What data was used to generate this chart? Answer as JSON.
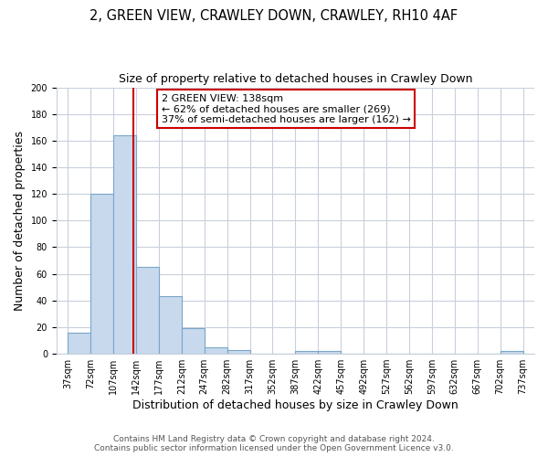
{
  "title": "2, GREEN VIEW, CRAWLEY DOWN, CRAWLEY, RH10 4AF",
  "subtitle": "Size of property relative to detached houses in Crawley Down",
  "xlabel": "Distribution of detached houses by size in Crawley Down",
  "ylabel": "Number of detached properties",
  "bar_edges": [
    37,
    72,
    107,
    142,
    177,
    212,
    247,
    282,
    317,
    352,
    387,
    422,
    457,
    492,
    527,
    562,
    597,
    632,
    667,
    702,
    737
  ],
  "bar_heights": [
    16,
    120,
    164,
    65,
    43,
    19,
    5,
    3,
    0,
    0,
    2,
    2,
    0,
    0,
    0,
    0,
    0,
    0,
    0,
    2
  ],
  "bar_color": "#c8d9ed",
  "bar_edge_color": "#7aa5c8",
  "vline_x": 138,
  "vline_color": "#cc0000",
  "ylim": [
    0,
    200
  ],
  "yticks": [
    0,
    20,
    40,
    60,
    80,
    100,
    120,
    140,
    160,
    180,
    200
  ],
  "tick_labels": [
    "37sqm",
    "72sqm",
    "107sqm",
    "142sqm",
    "177sqm",
    "212sqm",
    "247sqm",
    "282sqm",
    "317sqm",
    "352sqm",
    "387sqm",
    "422sqm",
    "457sqm",
    "492sqm",
    "527sqm",
    "562sqm",
    "597sqm",
    "632sqm",
    "667sqm",
    "702sqm",
    "737sqm"
  ],
  "annotation_title": "2 GREEN VIEW: 138sqm",
  "annotation_line1": "← 62% of detached houses are smaller (269)",
  "annotation_line2": "37% of semi-detached houses are larger (162) →",
  "annotation_box_color": "#ffffff",
  "annotation_box_edge": "#cc0000",
  "footer_line1": "Contains HM Land Registry data © Crown copyright and database right 2024.",
  "footer_line2": "Contains public sector information licensed under the Open Government Licence v3.0.",
  "bg_color": "#ffffff",
  "grid_color": "#c8d0dc",
  "title_fontsize": 10.5,
  "subtitle_fontsize": 9,
  "axis_label_fontsize": 9,
  "tick_fontsize": 7,
  "footer_fontsize": 6.5
}
